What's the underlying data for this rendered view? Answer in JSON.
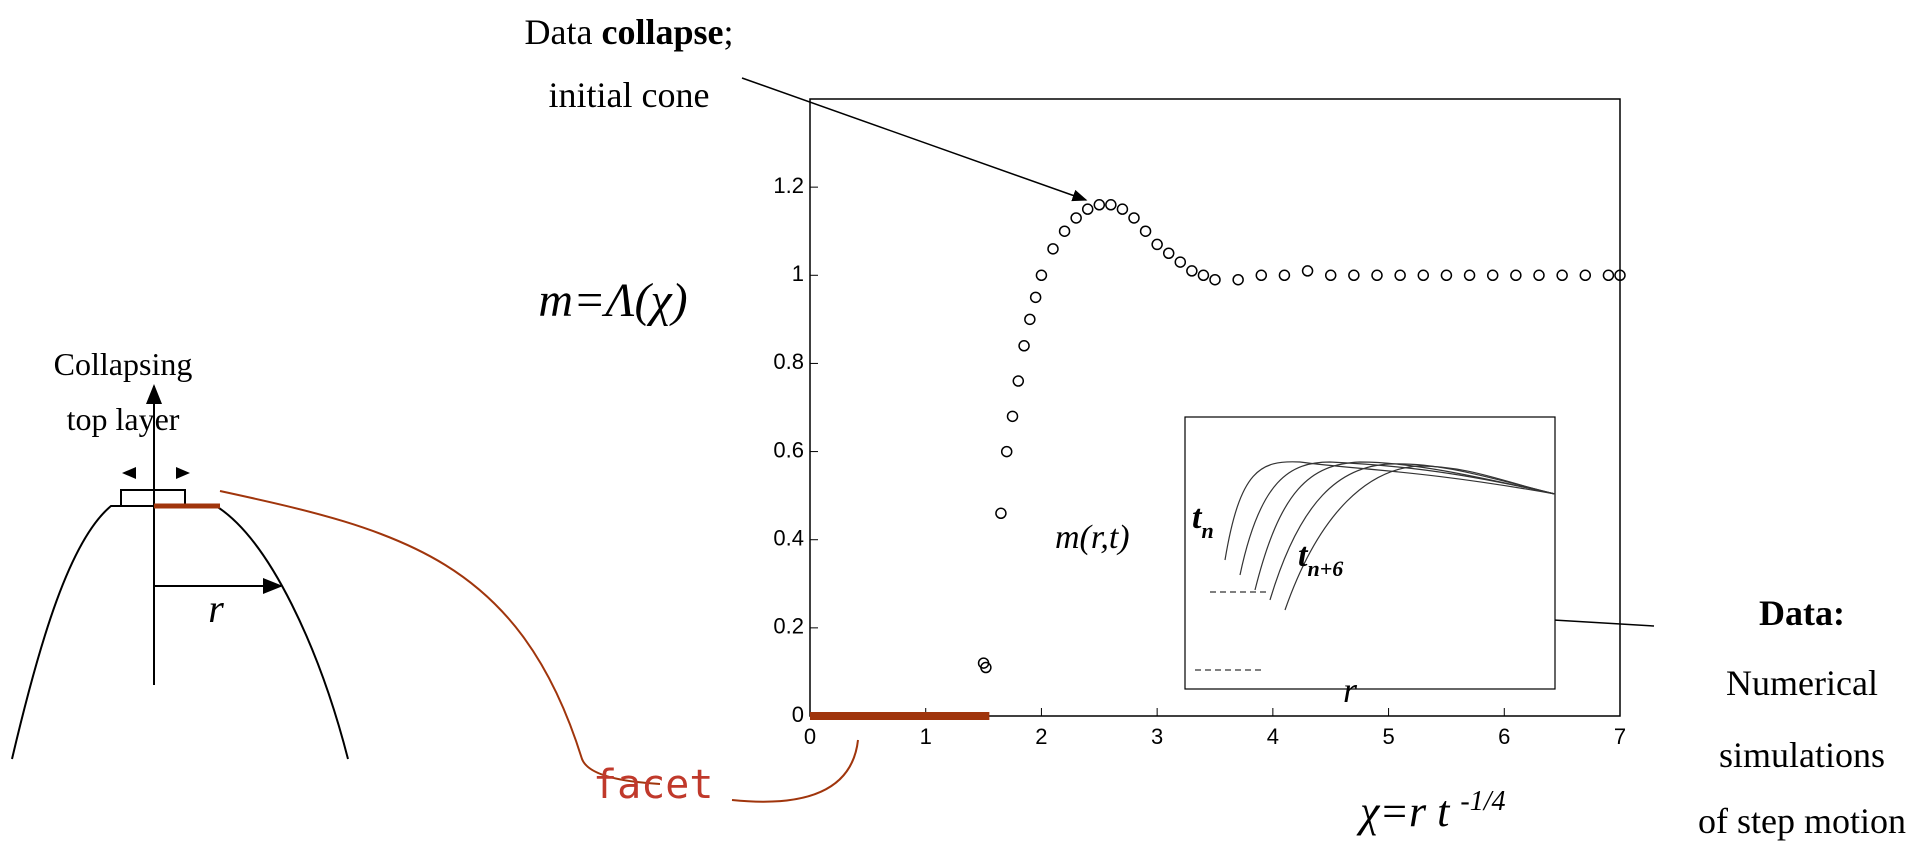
{
  "chart_data": {
    "type": "scatter",
    "annotations": {
      "collapse": {
        "pre": "Data ",
        "bold": "collapse",
        "post": ";",
        "line2": "initial cone"
      },
      "y_label": "m=Λ(χ)",
      "x_label": {
        "base": "χ=r t ",
        "exp": "-1/4"
      },
      "data_note": {
        "title": "Data:",
        "lines": [
          "Numerical",
          "simulations",
          "of step motion"
        ]
      },
      "inset": {
        "label": "m(r,t)",
        "t_start": {
          "base": "t",
          "sub": "n"
        },
        "t_end": {
          "base": "t",
          "sub": "n+6"
        },
        "axis": "r"
      },
      "diagram": {
        "caption": [
          "Collapsing",
          "top layer"
        ],
        "radius": "r",
        "facet": "facet"
      }
    },
    "xlim": [
      0,
      7
    ],
    "xticks": [
      0,
      1,
      2,
      3,
      4,
      5,
      6,
      7
    ],
    "ylim": [
      0,
      1.4
    ],
    "yticks": [
      0,
      0.2,
      0.4,
      0.6,
      0.8,
      1,
      1.2
    ],
    "facet": {
      "x": [
        0,
        1.55
      ],
      "y": [
        0,
        0
      ],
      "color": "#a0350c"
    },
    "series": [
      {
        "color": "#000000",
        "x": [
          1.5,
          1.52,
          1.65,
          1.7,
          1.75,
          1.8,
          1.85,
          1.9,
          1.95,
          2.0,
          2.1,
          2.2,
          2.3,
          2.4,
          2.5,
          2.6,
          2.7,
          2.8,
          2.9,
          3.0,
          3.1,
          3.2,
          3.3,
          3.4,
          3.5,
          3.7,
          3.9,
          4.1,
          4.3,
          4.5,
          4.7,
          4.9,
          5.1,
          5.3,
          5.5,
          5.7,
          5.9,
          6.1,
          6.3,
          6.5,
          6.7,
          6.9,
          7.0
        ],
        "values": [
          0.12,
          0.11,
          0.46,
          0.6,
          0.68,
          0.76,
          0.84,
          0.9,
          0.95,
          1.0,
          1.06,
          1.1,
          1.13,
          1.15,
          1.16,
          1.16,
          1.15,
          1.13,
          1.1,
          1.07,
          1.05,
          1.03,
          1.01,
          1.0,
          0.99,
          0.99,
          1.0,
          1.0,
          1.01,
          1.0,
          1.0,
          1.0,
          1.0,
          1.0,
          1.0,
          1.0,
          1.0,
          1.0,
          1.0,
          1.0,
          1.0,
          1.0,
          1.0
        ]
      }
    ]
  }
}
